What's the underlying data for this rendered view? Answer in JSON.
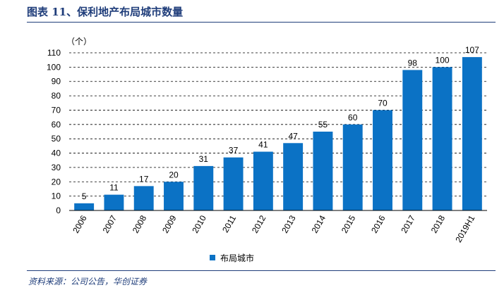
{
  "header": {
    "title": "图表 11、保利地产布局城市数量"
  },
  "footer": {
    "source": "资料来源：公司公告，华创证券"
  },
  "chart_data": {
    "type": "bar",
    "unit_label": "（个）",
    "categories": [
      "2006",
      "2007",
      "2008",
      "2009",
      "2010",
      "2011",
      "2012",
      "2013",
      "2014",
      "2015",
      "2016",
      "2017",
      "2018",
      "2019H1"
    ],
    "series": [
      {
        "name": "布局城市",
        "color": "#0b72c5",
        "values": [
          5,
          11,
          17,
          20,
          31,
          37,
          41,
          47,
          55,
          60,
          70,
          98,
          100,
          107
        ]
      }
    ],
    "ylim": [
      0,
      110
    ],
    "yticks": [
      0,
      10,
      20,
      30,
      40,
      50,
      60,
      70,
      80,
      90,
      100,
      110
    ],
    "grid": true,
    "legend_position": "bottom"
  }
}
